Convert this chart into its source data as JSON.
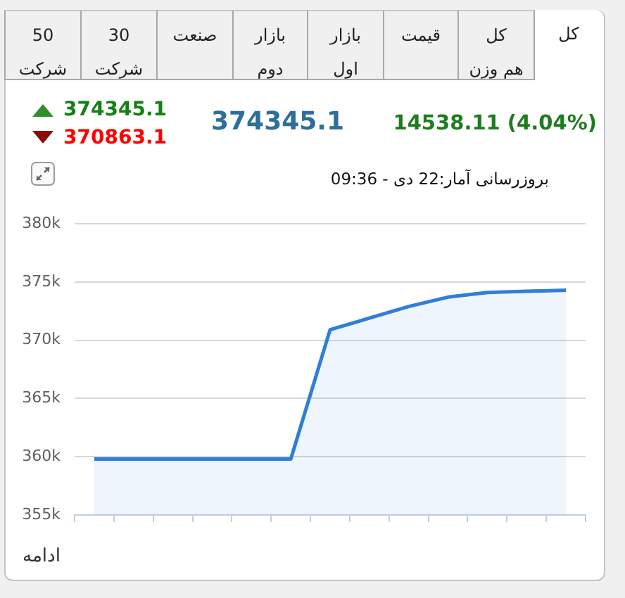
{
  "chart_data": {
    "type": "area",
    "title": "374345.1",
    "subtitle": "14538.11 (4.04%)",
    "categories": [
      null,
      null,
      null,
      null,
      null,
      null,
      null,
      null,
      null,
      null,
      null,
      null,
      null
    ],
    "series": [
      {
        "color": "#2f7ed8",
        "values": [
          359800,
          359800,
          359800,
          359800,
          359800,
          359800,
          370900,
          371900,
          372900,
          373700,
          374100,
          374200,
          374300
        ]
      }
    ],
    "ylim": [
      355000,
      380000
    ],
    "yticks": [
      {
        "value": 355000,
        "label": "355k"
      },
      {
        "value": 360000,
        "label": "360k"
      },
      {
        "value": 365000,
        "label": "365k"
      },
      {
        "value": 370000,
        "label": "370k"
      },
      {
        "value": 375000,
        "label": "375k"
      },
      {
        "value": 380000,
        "label": "380k"
      }
    ],
    "grid": "y",
    "marker": "none",
    "annotations": [
      "کل",
      "کل\nهم وزن",
      "قیمت",
      "بازار\nاول",
      "بازار\nدوم",
      "صنعت",
      "30\nشرکت",
      "50\nشرکت",
      "374345.1",
      "370863.1",
      "بروزرسانی آمار:22 دی - 09:36",
      "ادامه"
    ]
  }
}
